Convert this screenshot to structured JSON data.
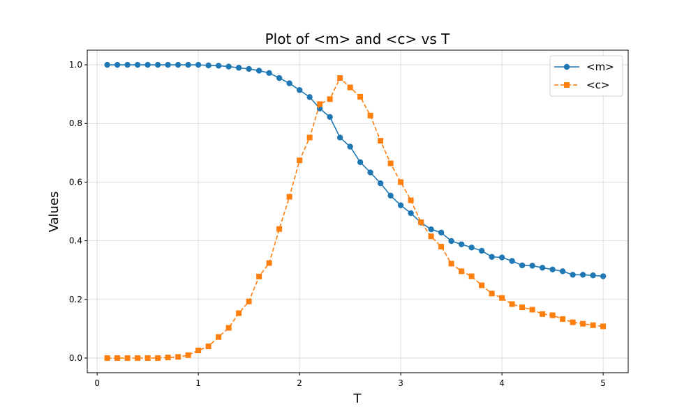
{
  "chart_data": {
    "type": "line",
    "title": "Plot of <m> and <c> vs T",
    "xlabel": "T",
    "ylabel": "Values",
    "xlim": [
      -0.0975,
      5.2475
    ],
    "ylim": [
      -0.05,
      1.05
    ],
    "xticks": [
      0,
      1,
      2,
      3,
      4,
      5
    ],
    "yticks": [
      0.0,
      0.2,
      0.4,
      0.6,
      0.8,
      1.0
    ],
    "grid": true,
    "legend_position": "top-right",
    "x": [
      0.1,
      0.2,
      0.3,
      0.4,
      0.5,
      0.6,
      0.7,
      0.8,
      0.9,
      1.0,
      1.1,
      1.2,
      1.3,
      1.4,
      1.5,
      1.6,
      1.7,
      1.8,
      1.9,
      2.0,
      2.1,
      2.2,
      2.3,
      2.4,
      2.5,
      2.6,
      2.7,
      2.8,
      2.9,
      3.0,
      3.1,
      3.2,
      3.3,
      3.4,
      3.5,
      3.6,
      3.7,
      3.8,
      3.9,
      4.0,
      4.1,
      4.2,
      4.3,
      4.4,
      4.5,
      4.6,
      4.7,
      4.8,
      4.9,
      5.0
    ],
    "series": [
      {
        "name": "<m>",
        "color": "#1f77b4",
        "marker": "circle",
        "linestyle": "solid",
        "values": [
          1.0,
          1.0,
          1.0,
          1.0,
          1.0,
          1.0,
          1.0,
          1.0,
          1.0,
          1.0,
          0.998,
          0.997,
          0.994,
          0.99,
          0.986,
          0.98,
          0.972,
          0.955,
          0.937,
          0.914,
          0.89,
          0.851,
          0.822,
          0.752,
          0.721,
          0.668,
          0.633,
          0.596,
          0.554,
          0.521,
          0.494,
          0.462,
          0.439,
          0.428,
          0.399,
          0.388,
          0.377,
          0.366,
          0.345,
          0.343,
          0.331,
          0.316,
          0.315,
          0.308,
          0.302,
          0.296,
          0.284,
          0.284,
          0.282,
          0.279
        ]
      },
      {
        "name": "<c>",
        "color": "#ff7f0e",
        "marker": "square",
        "linestyle": "dashed",
        "values": [
          0.0,
          0.0,
          0.0,
          0.0,
          0.0,
          0.0,
          0.002,
          0.004,
          0.01,
          0.026,
          0.04,
          0.072,
          0.103,
          0.153,
          0.193,
          0.278,
          0.324,
          0.44,
          0.55,
          0.674,
          0.752,
          0.866,
          0.883,
          0.955,
          0.923,
          0.891,
          0.827,
          0.741,
          0.664,
          0.6,
          0.538,
          0.463,
          0.415,
          0.38,
          0.322,
          0.296,
          0.279,
          0.248,
          0.22,
          0.205,
          0.184,
          0.173,
          0.165,
          0.15,
          0.146,
          0.133,
          0.122,
          0.117,
          0.112,
          0.108
        ]
      }
    ]
  }
}
